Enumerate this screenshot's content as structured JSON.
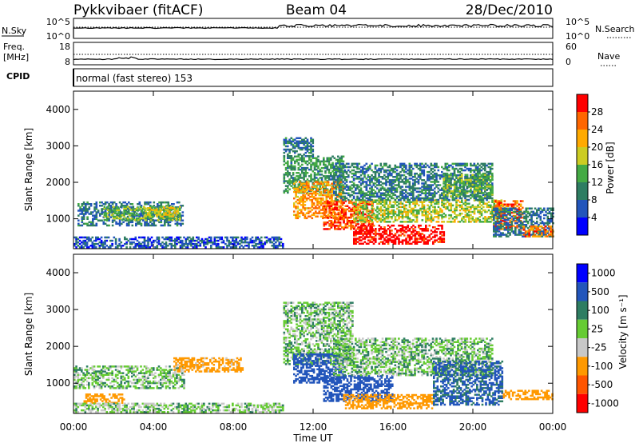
{
  "header": {
    "station": "Pykkvibaer (fitACF)",
    "beam": "Beam 04",
    "date": "28/Dec/2010"
  },
  "noise_panel": {
    "left_label": "N.Sky",
    "left_ticks": [
      "10^5",
      "10^0"
    ],
    "right_ticks": [
      "10^5",
      "10^0"
    ],
    "right_label": "N.Search"
  },
  "freq_panel": {
    "left_label_1": "Freq.",
    "left_label_2": "[MHz]",
    "left_ticks": [
      "18",
      "8"
    ],
    "right_ticks": [
      "60",
      "0"
    ],
    "right_label": "Nave",
    "cpid_label": "CPID",
    "program": "normal (fast stereo) 153"
  },
  "colors": {
    "power": [
      "#0000ff",
      "#2255bb",
      "#2e7d62",
      "#44aa44",
      "#cccc22",
      "#ffaa00",
      "#ff6600",
      "#ff0000"
    ],
    "velocity": [
      "#0000ff",
      "#2255bb",
      "#2e7d62",
      "#66cc33",
      "#c8c8c8",
      "#ff9900",
      "#ff5500",
      "#ff0000"
    ]
  },
  "chart_data": [
    {
      "type": "heatmap",
      "ylabel": "Slant Range [km]",
      "xlabel": "",
      "x_ticks": [
        "00:00",
        "04:00",
        "08:00",
        "12:00",
        "16:00",
        "20:00",
        "00:00"
      ],
      "xlim_hours": [
        0,
        24
      ],
      "ylim_km": [
        180,
        4500
      ],
      "y_ticks": [
        1000,
        2000,
        3000,
        4000
      ],
      "colorbar_label": "Power [dB]",
      "colorbar_ticks": [
        4,
        8,
        12,
        16,
        20,
        24,
        28
      ],
      "colorbar_range": [
        0,
        30
      ],
      "regions": [
        {
          "t0": 0.2,
          "t1": 5.5,
          "r0": 800,
          "r1": 1450,
          "v": 8
        },
        {
          "t0": 1.5,
          "t1": 5.3,
          "r0": 950,
          "r1": 1350,
          "v": 14
        },
        {
          "t0": 3.5,
          "t1": 5.2,
          "r0": 1050,
          "r1": 1300,
          "v": 18
        },
        {
          "t0": 0.0,
          "t1": 10.5,
          "r0": 200,
          "r1": 500,
          "v": 6
        },
        {
          "t0": 10.5,
          "t1": 12.0,
          "r0": 2700,
          "r1": 3200,
          "v": 8
        },
        {
          "t0": 10.5,
          "t1": 13.5,
          "r0": 1700,
          "r1": 2700,
          "v": 11
        },
        {
          "t0": 11.0,
          "t1": 13.5,
          "r0": 1000,
          "r1": 2000,
          "v": 22
        },
        {
          "t0": 12.5,
          "t1": 15.0,
          "r0": 700,
          "r1": 1500,
          "v": 26
        },
        {
          "t0": 14.0,
          "t1": 18.5,
          "r0": 300,
          "r1": 800,
          "v": 29
        },
        {
          "t0": 14.0,
          "t1": 21.5,
          "r0": 900,
          "r1": 1500,
          "v": 16
        },
        {
          "t0": 13.0,
          "t1": 21.0,
          "r0": 1500,
          "r1": 2500,
          "v": 9
        },
        {
          "t0": 18.5,
          "t1": 21.0,
          "r0": 1600,
          "r1": 2200,
          "v": 13
        },
        {
          "t0": 21.0,
          "t1": 22.5,
          "r0": 700,
          "r1": 1500,
          "v": 25
        },
        {
          "t0": 21.0,
          "t1": 24.0,
          "r0": 500,
          "r1": 1300,
          "v": 8
        },
        {
          "t0": 22.5,
          "t1": 24.0,
          "r0": 500,
          "r1": 800,
          "v": 24
        }
      ]
    },
    {
      "type": "heatmap",
      "ylabel": "Slant Range [km]",
      "xlabel": "Time UT",
      "x_ticks": [
        "00:00",
        "04:00",
        "08:00",
        "12:00",
        "16:00",
        "20:00",
        "00:00"
      ],
      "xlim_hours": [
        0,
        24
      ],
      "ylim_km": [
        180,
        4500
      ],
      "y_ticks": [
        1000,
        2000,
        3000,
        4000
      ],
      "colorbar_label": "Velocity [m s⁻¹]",
      "colorbar_ticks": [
        "1000",
        "500",
        "100",
        "25",
        "-25",
        "-100",
        "-500",
        "-1000"
      ],
      "regions": [
        {
          "t0": 0.0,
          "t1": 5.5,
          "r0": 850,
          "r1": 1450,
          "v": 0
        },
        {
          "t0": 0.5,
          "t1": 2.5,
          "r0": 450,
          "r1": 700,
          "v": -300
        },
        {
          "t0": 0.0,
          "t1": 10.5,
          "r0": 200,
          "r1": 450,
          "v": -10
        },
        {
          "t0": 5.0,
          "t1": 8.5,
          "r0": 1300,
          "r1": 1700,
          "v": -150
        },
        {
          "t0": 10.5,
          "t1": 14.0,
          "r0": 1500,
          "r1": 3200,
          "v": 0
        },
        {
          "t0": 11.0,
          "t1": 13.5,
          "r0": 1000,
          "r1": 1800,
          "v": 200
        },
        {
          "t0": 12.5,
          "t1": 16.0,
          "r0": 500,
          "r1": 1200,
          "v": 250
        },
        {
          "t0": 13.5,
          "t1": 18.0,
          "r0": 300,
          "r1": 700,
          "v": -200
        },
        {
          "t0": 13.0,
          "t1": 21.0,
          "r0": 1200,
          "r1": 2200,
          "v": 0
        },
        {
          "t0": 18.0,
          "t1": 21.5,
          "r0": 400,
          "r1": 1600,
          "v": 120
        },
        {
          "t0": 21.5,
          "t1": 24.0,
          "r0": 550,
          "r1": 800,
          "v": -400
        }
      ]
    }
  ]
}
